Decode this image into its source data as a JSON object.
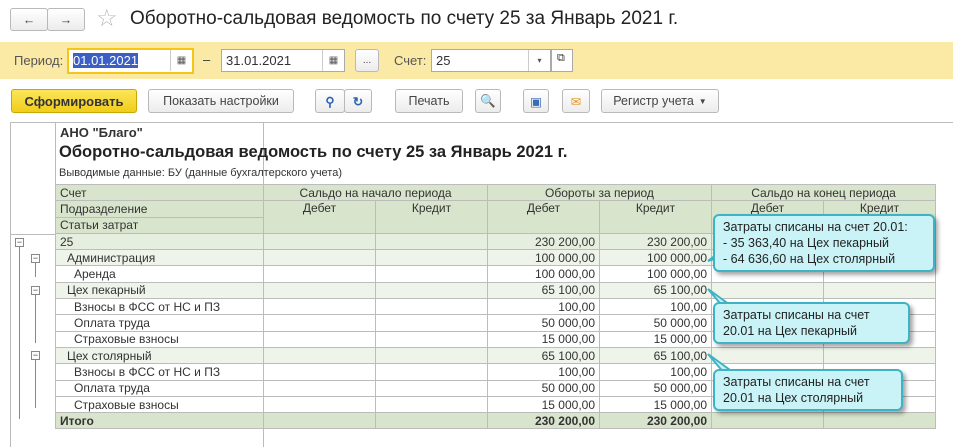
{
  "window": {
    "title": "Оборотно-сальдовая ведомость по счету 25 за Январь 2021 г.",
    "back_icon": "←",
    "forward_icon": "→",
    "star_icon": "☆"
  },
  "filter": {
    "period_label": "Период:",
    "date_from": "01.01.2021",
    "dash": "–",
    "date_to": "31.01.2021",
    "more_label": "...",
    "account_label": "Счет:",
    "account_value": "25"
  },
  "toolbar": {
    "generate": "Сформировать",
    "show_settings": "Показать настройки",
    "print": "Печать",
    "register": "Регистр учета"
  },
  "report": {
    "org": "АНО \"Благо\"",
    "title": "Оборотно-сальдовая ведомость по счету 25 за Январь 2021 г.",
    "output": "Выводимые данные:  БУ (данные бухгалтерского учета)",
    "headers": {
      "account": "Счет",
      "division": "Подразделение",
      "cost_item": "Статьи затрат",
      "opening": "Сальдо на начало периода",
      "turnover": "Обороты за период",
      "closing": "Сальдо на конец периода",
      "debit": "Дебет",
      "credit": "Кредит"
    },
    "rows": [
      {
        "name": "25",
        "od": "230 200,00",
        "oc": "230 200,00"
      },
      {
        "name": "Администрация",
        "od": "100 000,00",
        "oc": "100 000,00"
      },
      {
        "name": "Аренда",
        "od": "100 000,00",
        "oc": "100 000,00"
      },
      {
        "name": "Цех пекарный",
        "od": "65 100,00",
        "oc": "65 100,00"
      },
      {
        "name": "Взносы в ФСС от НС и ПЗ",
        "od": "100,00",
        "oc": "100,00"
      },
      {
        "name": "Оплата труда",
        "od": "50 000,00",
        "oc": "50 000,00"
      },
      {
        "name": "Страховые взносы",
        "od": "15 000,00",
        "oc": "15 000,00"
      },
      {
        "name": "Цех столярный",
        "od": "65 100,00",
        "oc": "65 100,00"
      },
      {
        "name": "Взносы в ФСС от НС и ПЗ",
        "od": "100,00",
        "oc": "100,00"
      },
      {
        "name": "Оплата труда",
        "od": "50 000,00",
        "oc": "50 000,00"
      },
      {
        "name": "Страховые взносы",
        "od": "15 000,00",
        "oc": "15 000,00"
      }
    ],
    "total": {
      "name": "Итого",
      "od": "230 200,00",
      "oc": "230 200,00"
    }
  },
  "callouts": [
    {
      "lines": [
        "Затраты списаны на счет 20.01:",
        "- 35 363,40 на Цех пекарный",
        "- 64 636,60 на Цех столярный"
      ]
    },
    {
      "lines": [
        "Затраты списаны на счет",
        "20.01 на Цех пекарный"
      ]
    },
    {
      "lines": [
        "Затраты списаны на счет",
        "20.01 на Цех столярный"
      ]
    }
  ],
  "colors": {
    "accent": "#f5d533",
    "filter_bg": "#fbeaa5",
    "header_bg": "#d8e4cc",
    "callout_bg": "#c9f3f7"
  }
}
